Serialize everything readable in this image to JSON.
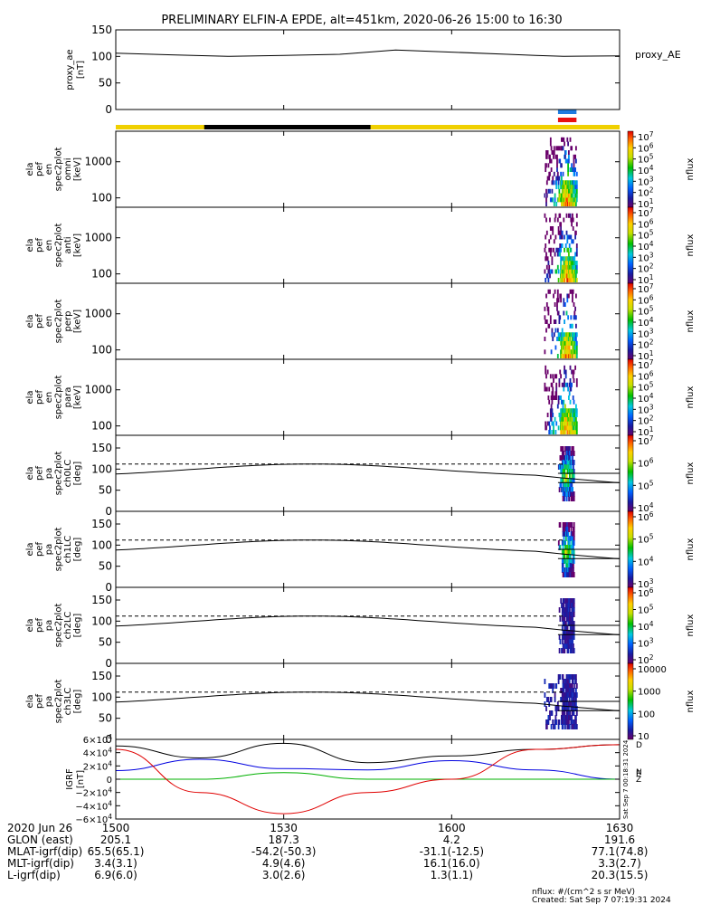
{
  "title": "PRELIMINARY ELFIN-A EPDE, alt=451km, 2020-06-26 15:00 to 16:30",
  "time_axis": {
    "ticks": [
      "1500",
      "1530",
      "1600",
      "1630"
    ],
    "start_min": 900,
    "end_min": 990
  },
  "colors": {
    "line": "#000000",
    "status_yellow": "#f0d000",
    "status_black": "#000000",
    "marker_blue": "#1e7be0",
    "marker_red": "#e81010",
    "grf_black": "#000000",
    "grf_blue": "#0000e0",
    "grf_green": "#00b000",
    "grf_red": "#e00000"
  },
  "chart_data": [
    {
      "type": "line",
      "panel": "proxy_ae",
      "ylabel_lines": [
        "proxy_ae",
        "[nT]"
      ],
      "legend": "proxy_AE",
      "yticks": [
        "150",
        "100",
        "50",
        "0"
      ],
      "ylim": [
        0,
        150
      ],
      "x": [
        900,
        910,
        920,
        930,
        940,
        950,
        960,
        970,
        975,
        980,
        990
      ],
      "y": [
        106,
        103,
        100,
        102,
        104,
        112,
        108,
        104,
        102,
        100,
        101
      ]
    },
    {
      "type": "heatmap",
      "panel": "omni",
      "ylabel_lines": [
        "ela",
        "pef",
        "en",
        "spec2plot",
        "omni",
        "[keV]"
      ],
      "yticks": [
        "1000",
        "100"
      ],
      "ylim": [
        55,
        7000
      ],
      "colorbar": {
        "label": "nflux",
        "ticks": [
          "10^7",
          "10^6",
          "10^5",
          "10^4",
          "10^3",
          "10^2",
          "10^1"
        ],
        "range": [
          10,
          10000000
        ]
      },
      "data_window_min": [
        976.5,
        982.3
      ]
    },
    {
      "type": "heatmap",
      "panel": "anti",
      "ylabel_lines": [
        "ela",
        "pef",
        "en",
        "spec2plot",
        "anti",
        "[keV]"
      ],
      "yticks": [
        "1000",
        "100"
      ],
      "ylim": [
        55,
        7000
      ],
      "colorbar": {
        "label": "nflux",
        "ticks": [
          "10^7",
          "10^6",
          "10^5",
          "10^4",
          "10^3",
          "10^2",
          "10^1"
        ],
        "range": [
          10,
          10000000
        ]
      },
      "data_window_min": [
        976.5,
        982.3
      ]
    },
    {
      "type": "heatmap",
      "panel": "perp",
      "ylabel_lines": [
        "ela",
        "pef",
        "en",
        "spec2plot",
        "perp",
        "[keV]"
      ],
      "yticks": [
        "1000",
        "100"
      ],
      "ylim": [
        55,
        7000
      ],
      "colorbar": {
        "label": "nflux",
        "ticks": [
          "10^7",
          "10^6",
          "10^5",
          "10^4",
          "10^3",
          "10^2",
          "10^1"
        ],
        "range": [
          10,
          10000000
        ]
      },
      "data_window_min": [
        976.5,
        982.3
      ]
    },
    {
      "type": "heatmap",
      "panel": "para",
      "ylabel_lines": [
        "ela",
        "pef",
        "en",
        "spec2plot",
        "para",
        "[keV]"
      ],
      "yticks": [
        "1000",
        "100"
      ],
      "ylim": [
        55,
        7000
      ],
      "colorbar": {
        "label": "nflux",
        "ticks": [
          "10^7",
          "10^6",
          "10^5",
          "10^4",
          "10^3",
          "10^2",
          "10^1"
        ],
        "range": [
          10,
          10000000
        ]
      },
      "data_window_min": [
        976.5,
        982.3
      ]
    },
    {
      "type": "heatmap",
      "panel": "ch0LC",
      "ylabel_lines": [
        "ela",
        "pef",
        "pa",
        "spec2plot",
        "ch0LC",
        "[deg]"
      ],
      "yticks": [
        "150",
        "100",
        "50",
        "0"
      ],
      "ylim": [
        0,
        180
      ],
      "colorbar": {
        "label": "nflux",
        "ticks": [
          "10^7",
          "10^6",
          "10^5",
          "10^4"
        ],
        "range": [
          1000,
          10000000
        ]
      },
      "data_window_min": [
        979.0,
        981.8
      ]
    },
    {
      "type": "heatmap",
      "panel": "ch1LC",
      "ylabel_lines": [
        "ela",
        "pef",
        "pa",
        "spec2plot",
        "ch1LC",
        "[deg]"
      ],
      "yticks": [
        "150",
        "100",
        "50",
        "0"
      ],
      "ylim": [
        0,
        180
      ],
      "colorbar": {
        "label": "nflux",
        "ticks": [
          "10^6",
          "10^5",
          "10^4",
          "10^3"
        ],
        "range": [
          300,
          3000000
        ]
      },
      "data_window_min": [
        979.0,
        981.8
      ]
    },
    {
      "type": "heatmap",
      "panel": "ch2LC",
      "ylabel_lines": [
        "ela",
        "pef",
        "pa",
        "spec2plot",
        "ch2LC",
        "[deg]"
      ],
      "yticks": [
        "150",
        "100",
        "50",
        "0"
      ],
      "ylim": [
        0,
        180
      ],
      "colorbar": {
        "label": "nflux",
        "ticks": [
          "10^6",
          "10^5",
          "10^4",
          "10^3",
          "10^2"
        ],
        "range": [
          50,
          1000000
        ]
      },
      "data_window_min": [
        979.0,
        981.8
      ]
    },
    {
      "type": "heatmap",
      "panel": "ch3LC",
      "ylabel_lines": [
        "ela",
        "pef",
        "pa",
        "spec2plot",
        "ch3LC",
        "[deg]"
      ],
      "yticks": [
        "150",
        "100",
        "50",
        "0"
      ],
      "ylim": [
        0,
        180
      ],
      "colorbar": {
        "label": "nflux",
        "ticks": [
          "10000",
          "1000",
          "100",
          "10"
        ],
        "range": [
          10,
          30000
        ]
      },
      "data_window_min": [
        976.5,
        982.3
      ]
    },
    {
      "type": "line",
      "panel": "IGRF",
      "ylabel_lines": [
        "IGRF",
        "[nT]"
      ],
      "yticks": [
        "6×10^4",
        "4×10^4",
        "2×10^4",
        "0",
        "−2×10^4",
        "−4×10^4",
        "−6×10^4"
      ],
      "ylim": [
        -60000,
        60000
      ],
      "legend": [
        "D",
        "N",
        "E",
        "Z"
      ],
      "series": [
        {
          "name": "D",
          "x": [
            900,
            915,
            930,
            945,
            960,
            975,
            990
          ],
          "y": [
            50000,
            32000,
            54000,
            25000,
            35000,
            45000,
            52000
          ]
        },
        {
          "name": "N",
          "x": [
            900,
            915,
            930,
            945,
            960,
            975,
            990
          ],
          "y": [
            13000,
            30000,
            16000,
            14000,
            28000,
            14000,
            0
          ]
        },
        {
          "name": "E",
          "x": [
            900,
            915,
            930,
            945,
            960,
            975,
            990
          ],
          "y": [
            0,
            0,
            10000,
            0,
            0,
            0,
            0
          ]
        },
        {
          "name": "Z",
          "x": [
            900,
            915,
            930,
            945,
            960,
            975,
            990
          ],
          "y": [
            45000,
            -20000,
            -52000,
            -20000,
            0,
            45000,
            52000
          ]
        }
      ]
    }
  ],
  "footer": {
    "row_labels": [
      "2020 Jun 26",
      "GLON (east)",
      "MLAT-igrf(dip)",
      "MLT-igrf(dip)",
      "L-igrf(dip)"
    ],
    "columns": [
      [
        "1500",
        "205.1",
        "65.5(65.1)",
        "3.4(3.1)",
        "6.9(6.0)"
      ],
      [
        "1530",
        "187.3",
        "-54.2(-50.3)",
        "4.9(4.6)",
        "3.0(2.6)"
      ],
      [
        "1600",
        "4.2",
        "-31.1(-12.5)",
        "16.1(16.0)",
        "1.3(1.1)"
      ],
      [
        "1630",
        "191.6",
        "77.1(74.8)",
        "3.3(2.7)",
        "20.3(15.5)"
      ]
    ],
    "units_note": "nflux: #/(cm^2 s sr MeV)",
    "created": "Created: Sat Sep  7 07:19:31 2024",
    "side_stamp": "Sat Sep  7 00:18:31 2024"
  }
}
